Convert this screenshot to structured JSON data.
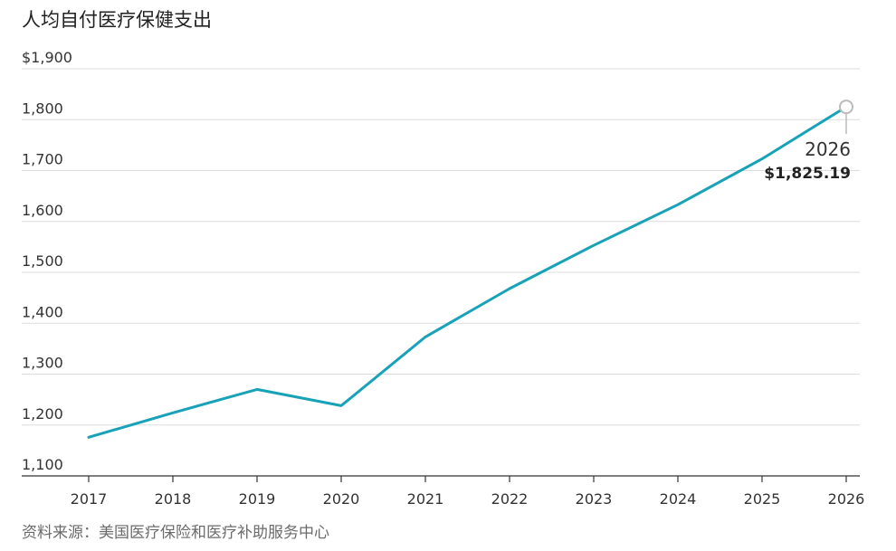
{
  "colors": {
    "series": "#17a2b8",
    "grid": "#dddddd",
    "axis": "#333333",
    "text": "#333333",
    "source_text": "#6b6b6b",
    "marker": "#bbbbbb"
  },
  "chart_data": {
    "type": "line",
    "title": "人均自付医疗保健支出",
    "source": "资料来源：美国医疗保险和医疗补助服务中心",
    "x": [
      "2017",
      "2018",
      "2019",
      "2020",
      "2021",
      "2022",
      "2023",
      "2024",
      "2025",
      "2026"
    ],
    "series": [
      {
        "values": [
          1176,
          1224,
          1270,
          1238,
          1373,
          1468,
          1553,
          1633,
          1723,
          1825.19
        ]
      }
    ],
    "ylim": [
      1100,
      1900
    ],
    "yticks": [
      1100,
      1200,
      1300,
      1400,
      1500,
      1600,
      1700,
      1800,
      1900
    ],
    "ytick_labels": [
      "1,100",
      "1,200",
      "1,300",
      "1,400",
      "1,500",
      "1,600",
      "1,700",
      "1,800",
      "$1,900"
    ],
    "grid": true,
    "annotation": {
      "year": "2026",
      "value": "$1,825.19"
    }
  }
}
